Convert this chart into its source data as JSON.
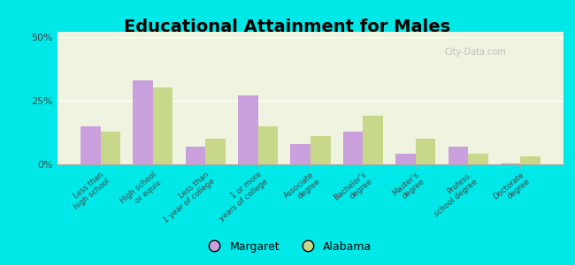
{
  "title": "Educational Attainment for Males",
  "categories": [
    "Less than\nhigh school",
    "High school\nor equiv.",
    "Less than\n1 year of college",
    "1 or more\nyears of college",
    "Associate\ndegree",
    "Bachelor's\ndegree",
    "Master's\ndegree",
    "Profess.\nschool degree",
    "Doctorate\ndegree"
  ],
  "margaret_values": [
    15.0,
    33.0,
    7.0,
    27.0,
    8.0,
    13.0,
    4.0,
    7.0,
    0.5
  ],
  "alabama_values": [
    13.0,
    30.0,
    10.0,
    15.0,
    11.0,
    19.0,
    10.0,
    4.0,
    3.0
  ],
  "margaret_color": "#c9a0dc",
  "alabama_color": "#c8d88a",
  "background_outer": "#00e8e8",
  "background_inner": "#eef4e0",
  "yticks": [
    0,
    25,
    50
  ],
  "ylim": [
    0,
    52
  ],
  "bar_width": 0.38,
  "title_fontsize": 14,
  "legend_fontsize": 9,
  "tick_fontsize": 6.2,
  "ytick_fontsize": 8
}
